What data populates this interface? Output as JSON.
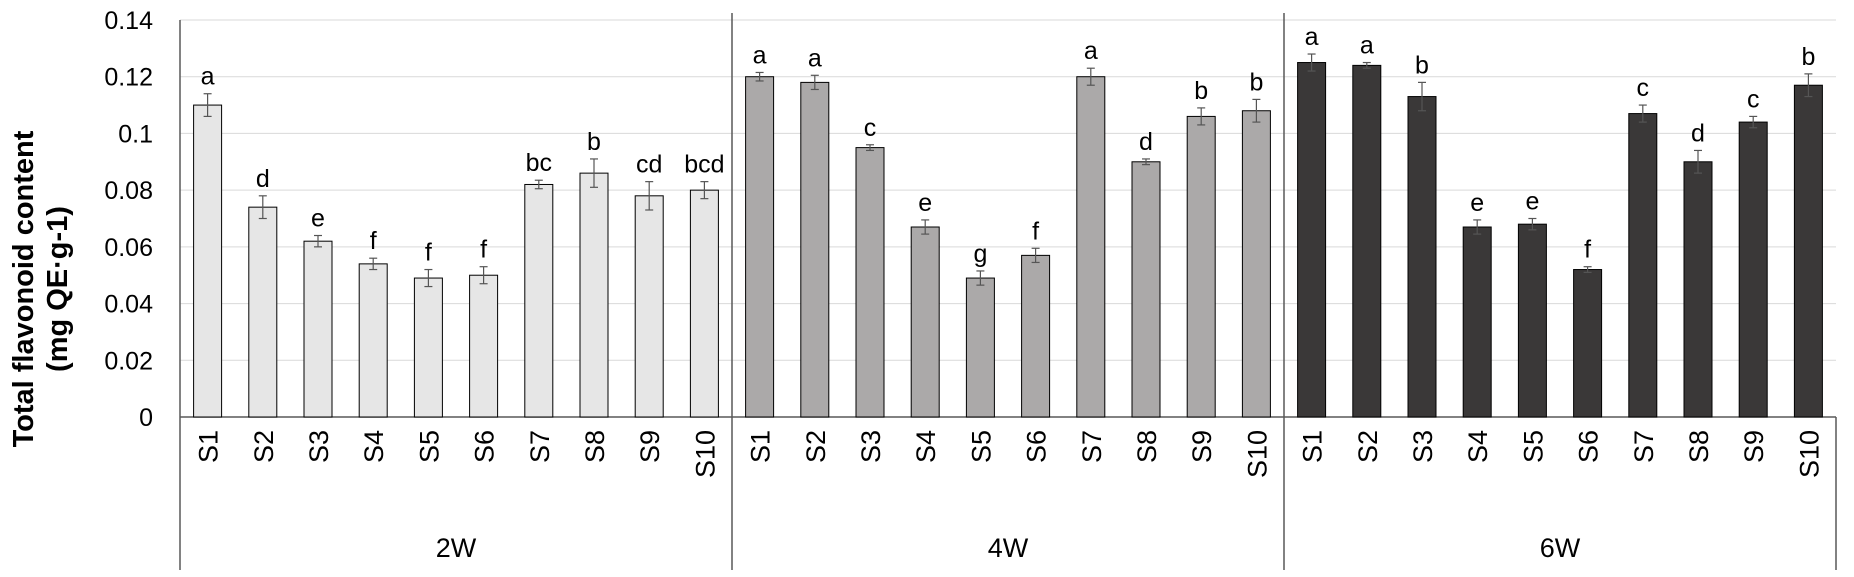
{
  "chart_data": {
    "type": "bar",
    "ylabel_line1": "Total flavonoid content",
    "ylabel_line2": "(mg QE·g-1)",
    "ylim": [
      0,
      0.14
    ],
    "yticks": [
      "0",
      "0.02",
      "0.04",
      "0.06",
      "0.08",
      "0.1",
      "0.12",
      "0.14"
    ],
    "ytick_values": [
      0,
      0.02,
      0.04,
      0.06,
      0.08,
      0.1,
      0.12,
      0.14
    ],
    "grid": true,
    "categories": [
      "S1",
      "S2",
      "S3",
      "S4",
      "S5",
      "S6",
      "S7",
      "S8",
      "S9",
      "S10"
    ],
    "groups": [
      {
        "name": "2W",
        "color": "#e6e6e6",
        "values": [
          0.11,
          0.074,
          0.062,
          0.054,
          0.049,
          0.05,
          0.082,
          0.086,
          0.078,
          0.08
        ],
        "errors": [
          0.004,
          0.004,
          0.002,
          0.002,
          0.003,
          0.003,
          0.0015,
          0.005,
          0.005,
          0.003
        ],
        "letters": [
          "a",
          "d",
          "e",
          "f",
          "f",
          "f",
          "bc",
          "b",
          "cd",
          "bcd"
        ]
      },
      {
        "name": "4W",
        "color": "#aba9a9",
        "values": [
          0.12,
          0.118,
          0.095,
          0.067,
          0.049,
          0.057,
          0.12,
          0.09,
          0.106,
          0.108
        ],
        "errors": [
          0.0015,
          0.0025,
          0.001,
          0.0025,
          0.0025,
          0.0025,
          0.003,
          0.001,
          0.003,
          0.004
        ],
        "letters": [
          "a",
          "a",
          "c",
          "e",
          "g",
          "f",
          "a",
          "d",
          "b",
          "b"
        ]
      },
      {
        "name": "6W",
        "color": "#3a3838",
        "values": [
          0.125,
          0.124,
          0.113,
          0.067,
          0.068,
          0.052,
          0.107,
          0.09,
          0.104,
          0.117
        ],
        "errors": [
          0.003,
          0.001,
          0.005,
          0.0025,
          0.002,
          0.001,
          0.003,
          0.004,
          0.002,
          0.004
        ],
        "letters": [
          "a",
          "a",
          "b",
          "e",
          "e",
          "f",
          "c",
          "d",
          "c",
          "b"
        ]
      }
    ]
  }
}
